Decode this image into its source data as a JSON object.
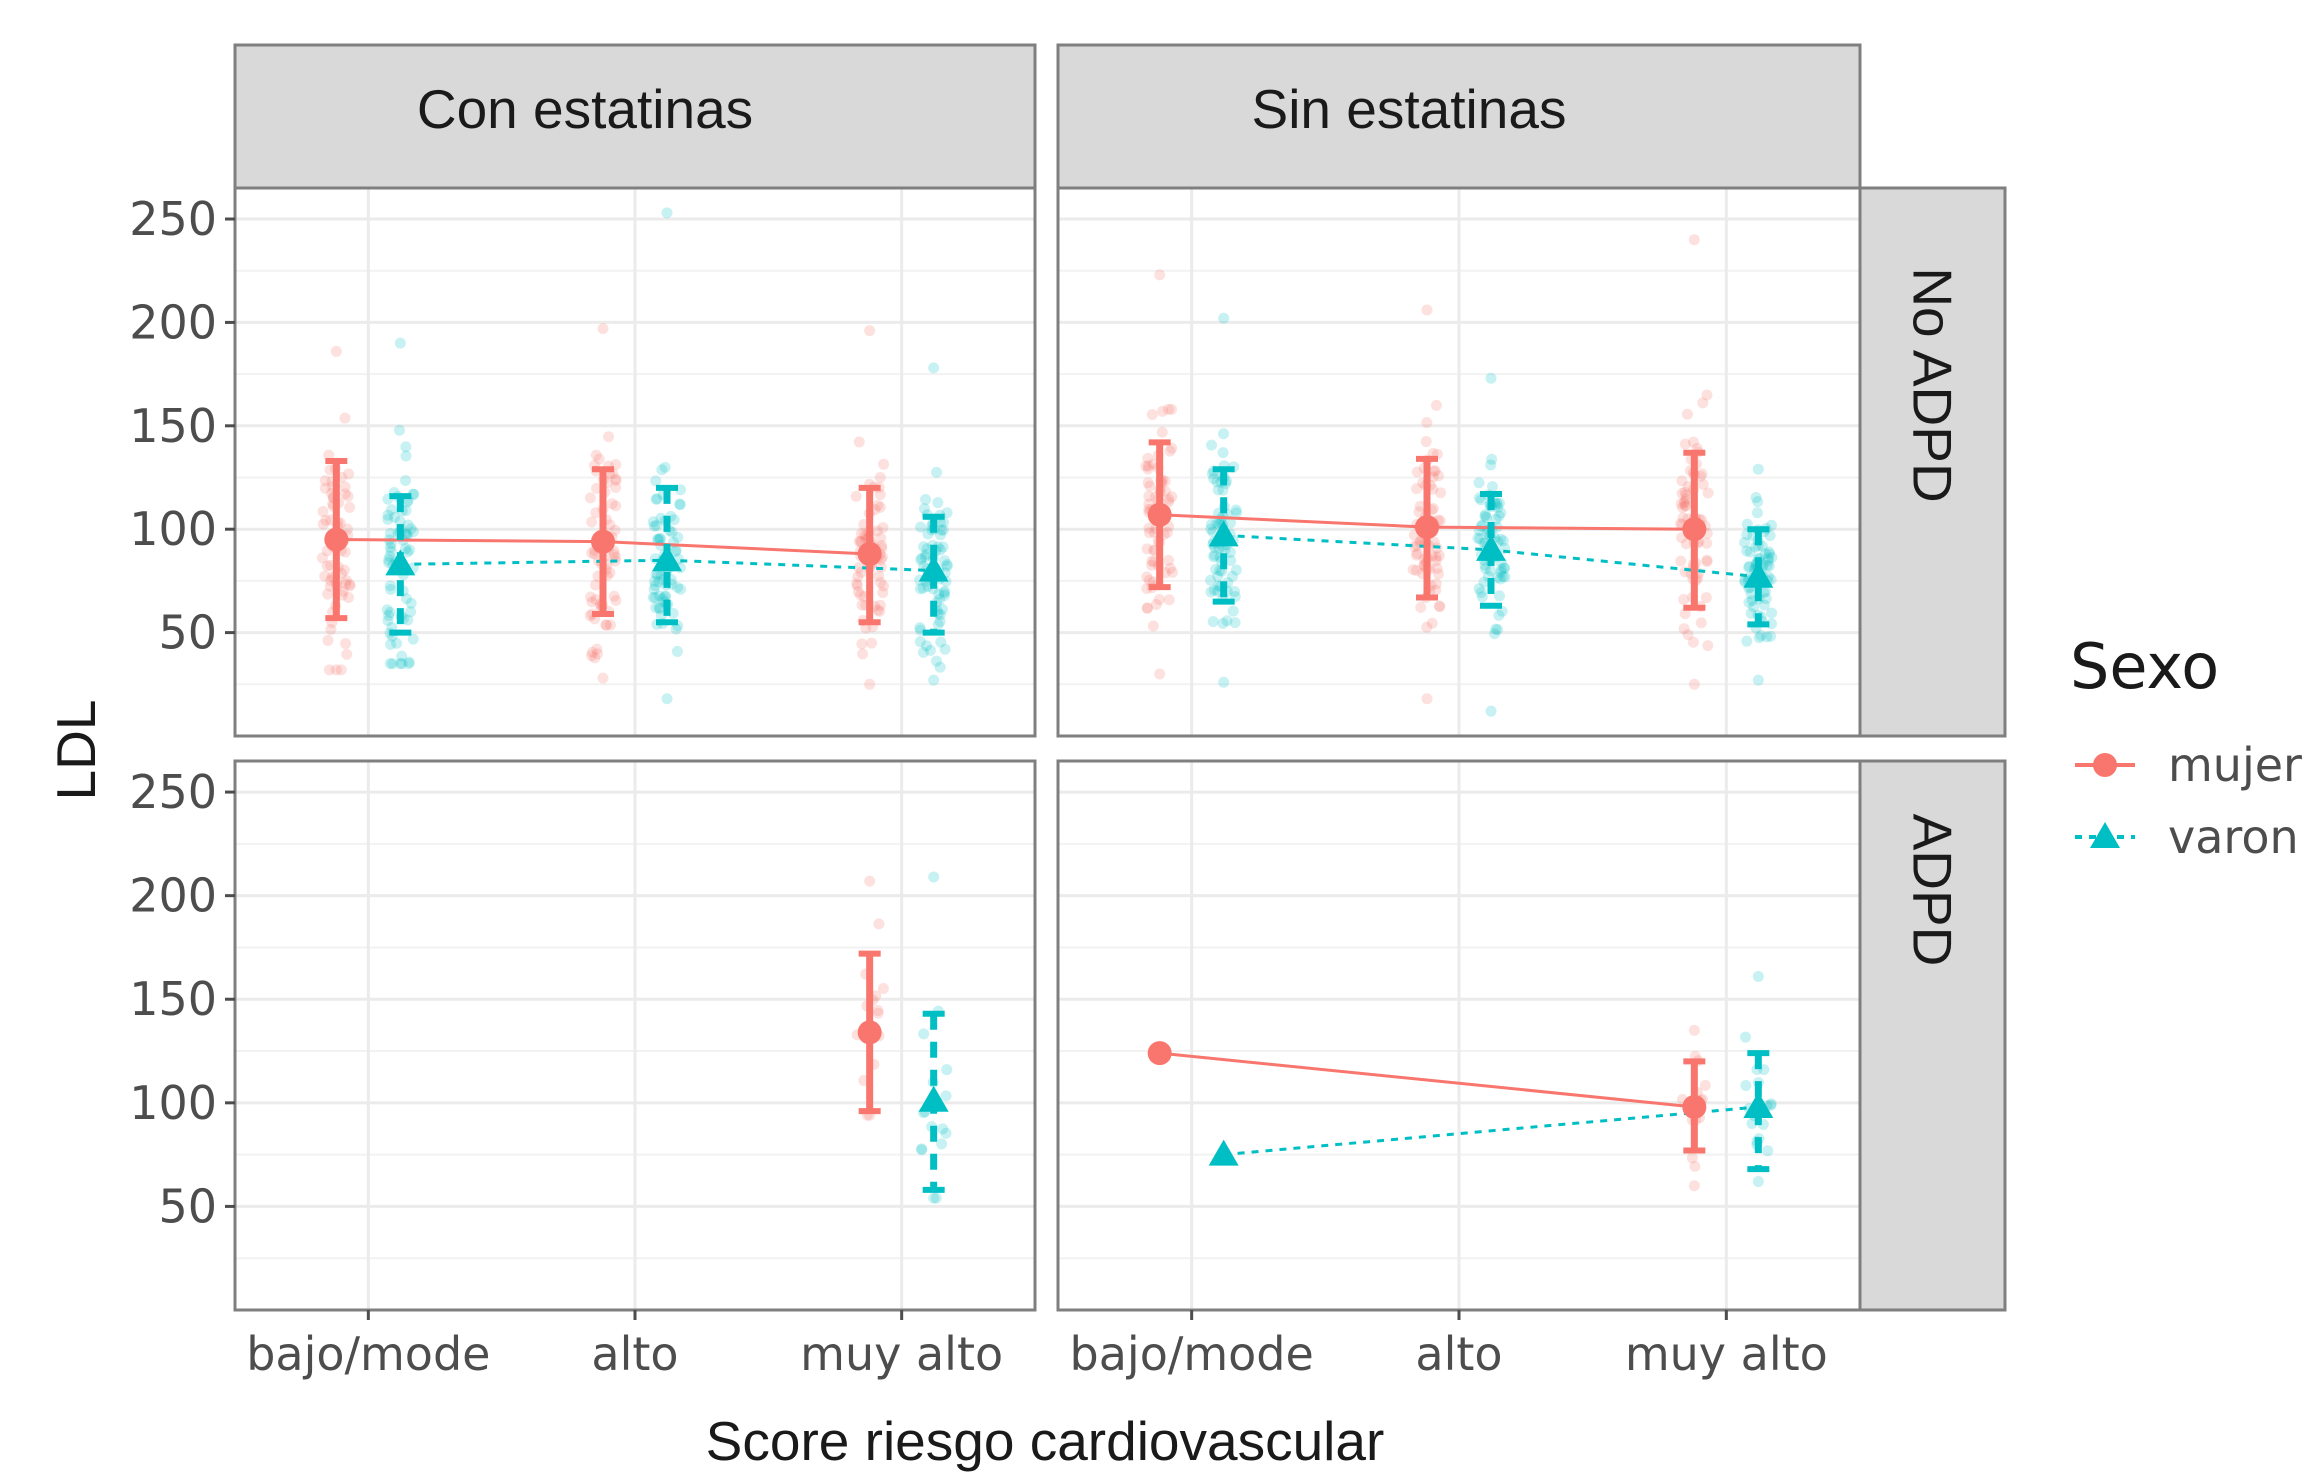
{
  "chart_data": {
    "type": "scatter",
    "ylabel": "LDL",
    "xlabel": "Score riesgo cardiovascular",
    "categories": [
      "bajo/mode",
      "alto",
      "muy alto"
    ],
    "ylim": [
      0,
      265
    ],
    "yticks": [
      50,
      100,
      150,
      200,
      250
    ],
    "columns": [
      "Con estatinas",
      "Sin estatinas"
    ],
    "rows": [
      "No ADPD",
      "ADPD"
    ],
    "legend": {
      "title": "Sexo",
      "position": "right",
      "entries": [
        {
          "name": "mujer",
          "color": "#F8766D",
          "shape": "circle",
          "line": "solid"
        },
        {
          "name": "varon",
          "color": "#00BFC4",
          "shape": "triangle",
          "line": "dotted"
        }
      ]
    },
    "panels": [
      {
        "column": "Con estatinas",
        "row": "No ADPD",
        "series": [
          {
            "name": "mujer",
            "means": [
              95,
              94,
              88
            ],
            "lower": [
              57,
              59,
              55
            ],
            "upper": [
              133,
              129,
              120
            ],
            "min": [
              32,
              28,
              25
            ],
            "max": [
              186,
              197,
              196
            ]
          },
          {
            "name": "varon",
            "means": [
              83,
              85,
              80
            ],
            "lower": [
              50,
              55,
              50
            ],
            "upper": [
              116,
              120,
              106
            ],
            "min": [
              35,
              18,
              27
            ],
            "max": [
              190,
              253,
              178
            ]
          }
        ]
      },
      {
        "column": "Sin estatinas",
        "row": "No ADPD",
        "series": [
          {
            "name": "mujer",
            "means": [
              107,
              101,
              100
            ],
            "lower": [
              72,
              67,
              62
            ],
            "upper": [
              142,
              134,
              137
            ],
            "min": [
              30,
              18,
              25
            ],
            "max": [
              223,
              206,
              240
            ]
          },
          {
            "name": "varon",
            "means": [
              97,
              90,
              77
            ],
            "lower": [
              65,
              63,
              54
            ],
            "upper": [
              129,
              117,
              100
            ],
            "min": [
              26,
              12,
              27
            ],
            "max": [
              202,
              173,
              129
            ]
          }
        ]
      },
      {
        "column": "Con estatinas",
        "row": "ADPD",
        "series": [
          {
            "name": "mujer",
            "means": [
              null,
              null,
              134
            ],
            "lower": [
              null,
              null,
              96
            ],
            "upper": [
              null,
              null,
              172
            ],
            "min": [
              null,
              null,
              94
            ],
            "max": [
              null,
              null,
              207
            ]
          },
          {
            "name": "varon",
            "means": [
              null,
              null,
              101
            ],
            "lower": [
              null,
              null,
              58
            ],
            "upper": [
              null,
              null,
              143
            ],
            "min": [
              null,
              null,
              54
            ],
            "max": [
              null,
              null,
              209
            ]
          }
        ]
      },
      {
        "column": "Sin estatinas",
        "row": "ADPD",
        "series": [
          {
            "name": "mujer",
            "means": [
              124,
              null,
              98
            ],
            "lower": [
              null,
              null,
              77
            ],
            "upper": [
              null,
              null,
              120
            ],
            "min": [
              124,
              null,
              60
            ],
            "max": [
              124,
              null,
              135
            ]
          },
          {
            "name": "varon",
            "means": [
              75,
              null,
              98
            ],
            "lower": [
              null,
              null,
              68
            ],
            "upper": [
              null,
              null,
              124
            ],
            "min": [
              75,
              null,
              62
            ],
            "max": [
              75,
              null,
              161
            ]
          }
        ]
      }
    ]
  }
}
